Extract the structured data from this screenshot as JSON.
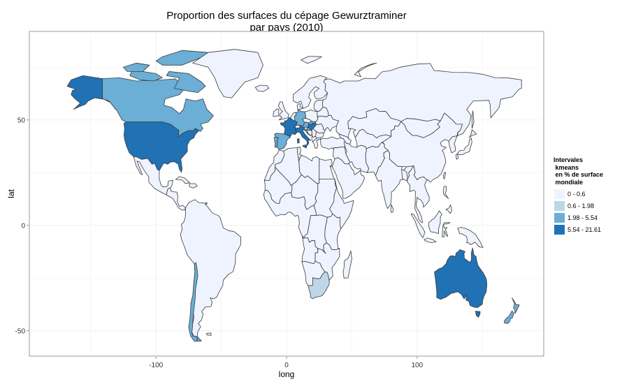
{
  "chart_data": {
    "type": "map",
    "title_lines": [
      "Proportion des surfaces du cépage Gewurztraminer",
      "par pays (2010)"
    ],
    "xlabel": "long",
    "ylabel": "lat",
    "x_ticks": [
      -100,
      0,
      100
    ],
    "y_ticks": [
      -50,
      0,
      50
    ],
    "xlim": [
      -197,
      197
    ],
    "ylim": [
      -62,
      92
    ],
    "grid": true,
    "legend_position": "right",
    "legend_title": "Intervales\n kmeans\n en % de surface\n mondiale",
    "classes": [
      {
        "label": "0 - 0.6",
        "color": "#EFF3FF"
      },
      {
        "label": "0.6 - 1.98",
        "color": "#BDD7E7"
      },
      {
        "label": "1.98 - 5.54",
        "color": "#6BAED6"
      },
      {
        "label": "5.54 - 21.61",
        "color": "#2171B5"
      }
    ],
    "countries": [
      {
        "name": "United States",
        "class": 3
      },
      {
        "name": "Alaska",
        "class": 3
      },
      {
        "name": "France",
        "class": 3
      },
      {
        "name": "Italy",
        "class": 3
      },
      {
        "name": "Hungary",
        "class": 3
      },
      {
        "name": "Australia",
        "class": 3
      },
      {
        "name": "Canada",
        "class": 2
      },
      {
        "name": "Spain",
        "class": 2
      },
      {
        "name": "Portugal",
        "class": 2
      },
      {
        "name": "Chile",
        "class": 2
      },
      {
        "name": "New Zealand",
        "class": 2
      },
      {
        "name": "Germany",
        "class": 2
      },
      {
        "name": "Austria",
        "class": 2
      },
      {
        "name": "Slovakia",
        "class": 2
      },
      {
        "name": "Croatia",
        "class": 2
      },
      {
        "name": "South Africa",
        "class": 1
      }
    ]
  }
}
